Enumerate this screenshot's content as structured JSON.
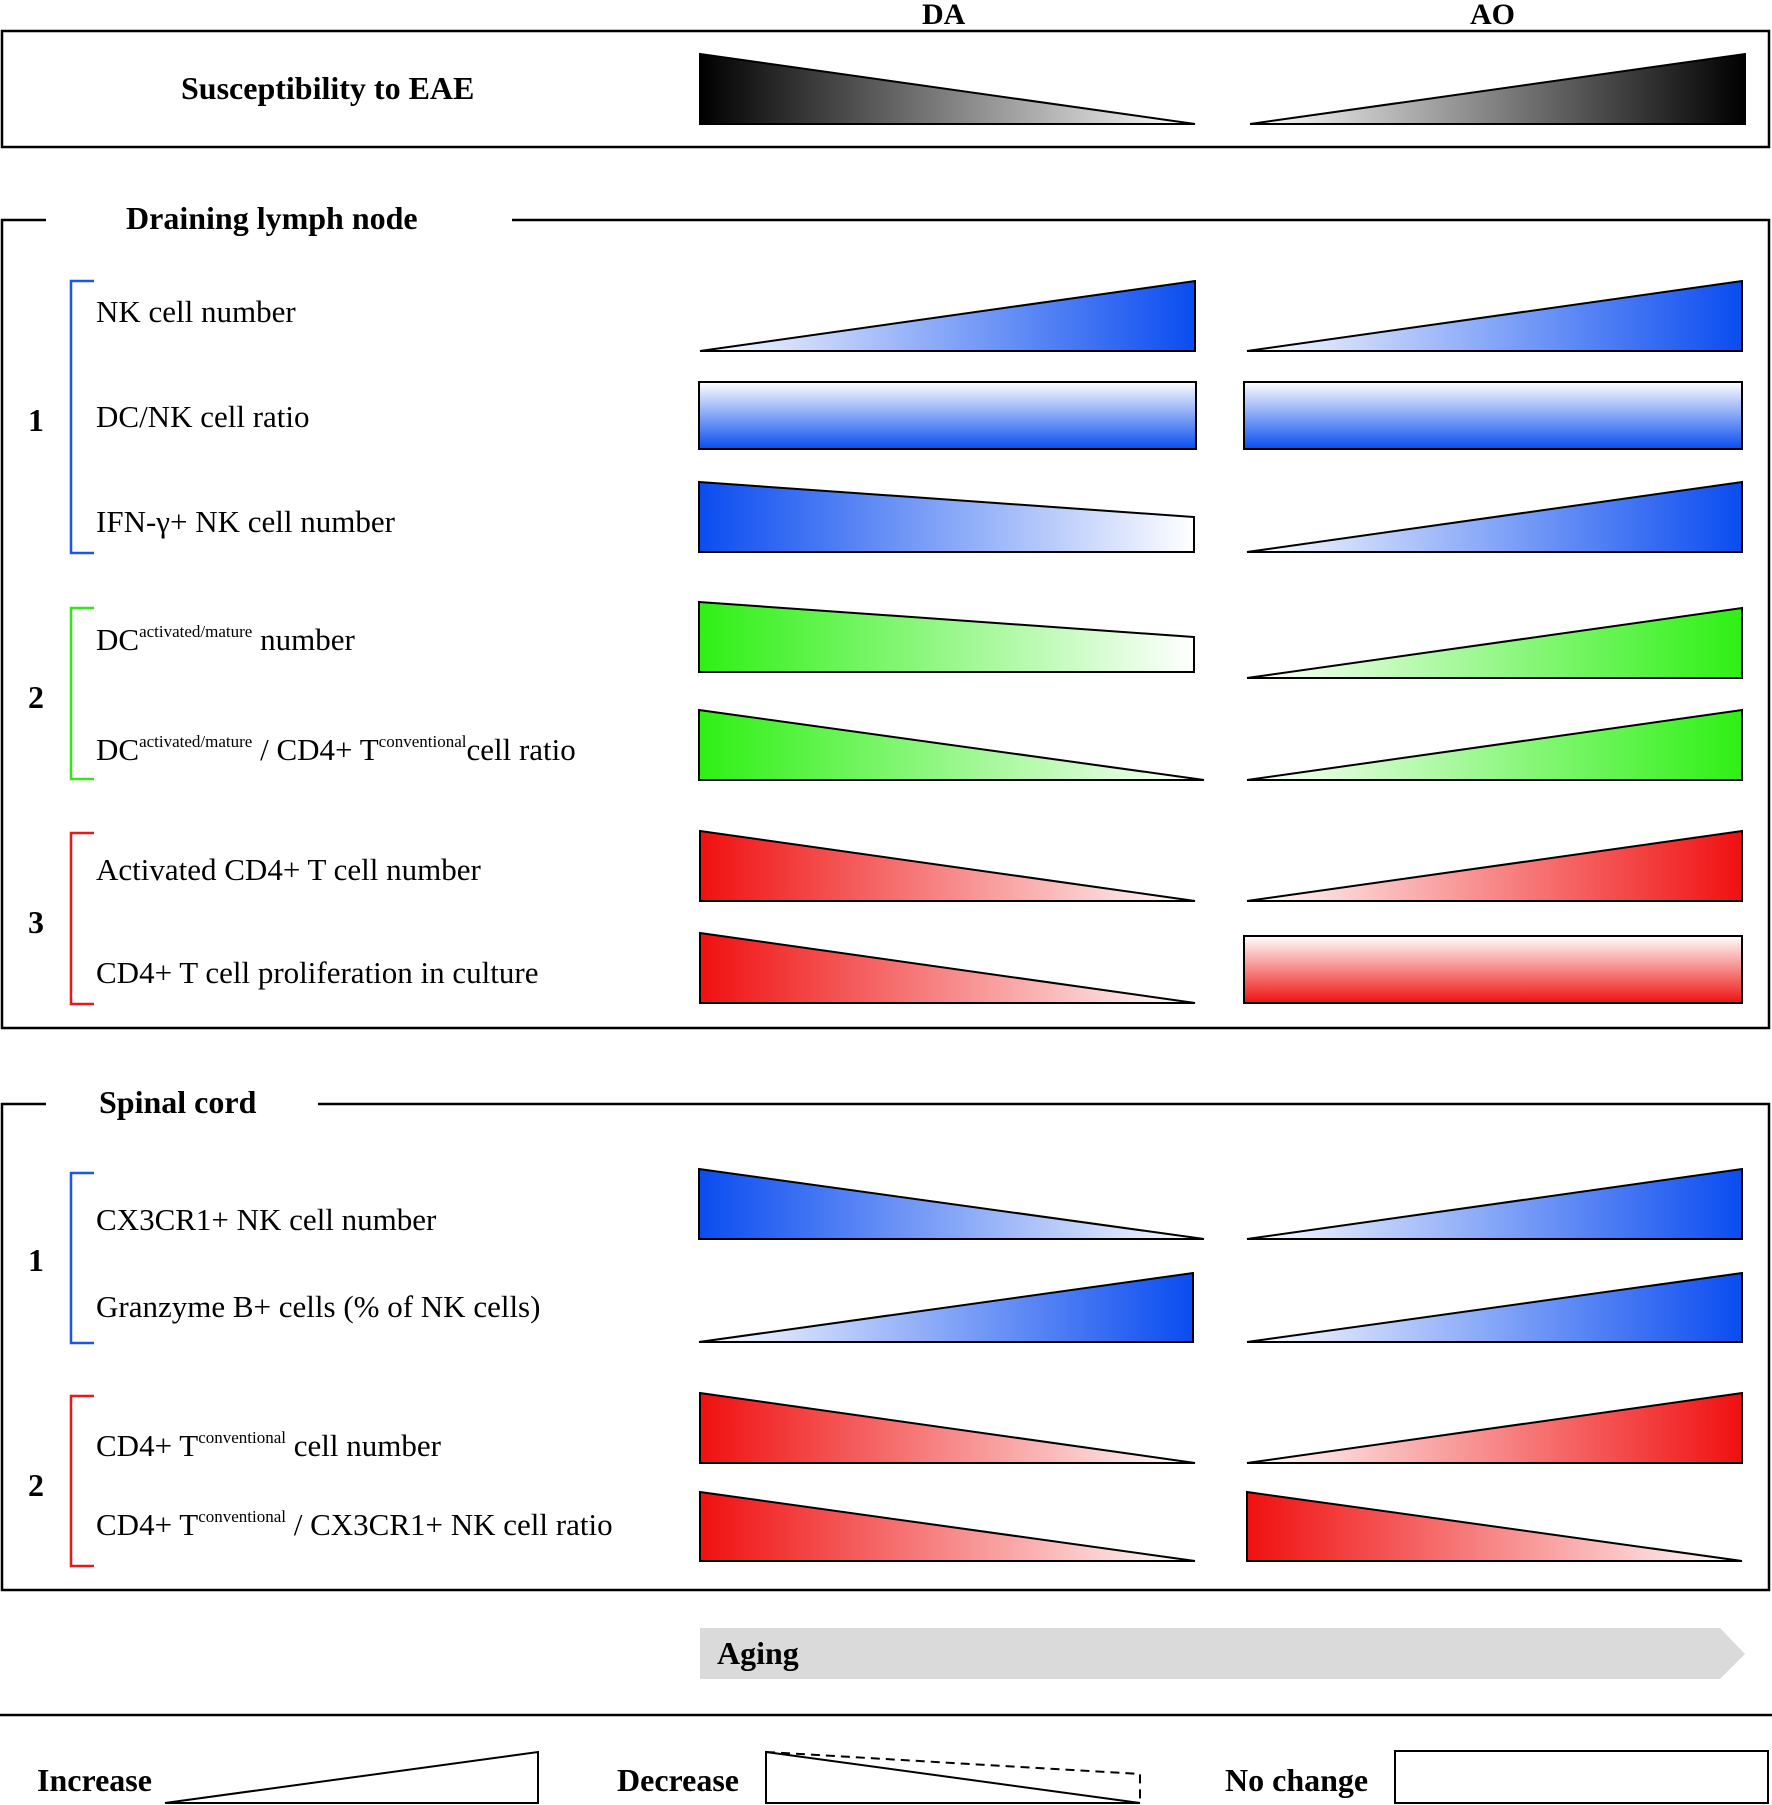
{
  "columns": [
    "DA",
    "AO"
  ],
  "susceptibility": {
    "label": "Susceptibility to EAE",
    "DA": "decrease",
    "AO": "increase"
  },
  "sections": [
    {
      "title": "Draining lymph node",
      "groups": [
        {
          "number": "1",
          "color": "#1a56e8",
          "rows": [
            {
              "label": "NK cell number",
              "DA": "increase",
              "AO": "increase"
            },
            {
              "label": "DC/NK cell ratio",
              "DA": "no change",
              "AO": "no change"
            },
            {
              "label": "IFN-γ+ NK cell number",
              "DA": "decrease",
              "AO": "increase"
            }
          ]
        },
        {
          "number": "2",
          "color": "#33e61a",
          "rows": [
            {
              "label_parts": [
                "DC",
                "activated/mature",
                " number"
              ],
              "DA": "decrease",
              "AO": "increase"
            },
            {
              "label_parts": [
                "DC",
                "activated/mature",
                " / CD4+ T",
                "conventional",
                "cell ratio"
              ],
              "DA": "decrease",
              "AO": "increase"
            }
          ]
        },
        {
          "number": "3",
          "color": "#e61a1a",
          "rows": [
            {
              "label": "Activated CD4+ T cell number",
              "DA": "decrease",
              "AO": "increase"
            },
            {
              "label": "CD4+ T cell proliferation in culture",
              "DA": "decrease",
              "AO": "no change"
            }
          ]
        }
      ]
    },
    {
      "title": "Spinal cord",
      "groups": [
        {
          "number": "1",
          "color": "#1a56e8",
          "rows": [
            {
              "label": "CX3CR1+ NK cell number",
              "DA": "decrease",
              "AO": "increase"
            },
            {
              "label": "Granzyme B+ cells (% of NK cells)",
              "DA": "increase",
              "AO": "increase"
            }
          ]
        },
        {
          "number": "2",
          "color": "#e61a1a",
          "rows": [
            {
              "label_parts": [
                "CD4+ T",
                "conventional",
                " cell number"
              ],
              "DA": "decrease",
              "AO": "increase"
            },
            {
              "label_parts": [
                "CD4+ T",
                "conventional",
                " / CX3CR1+ NK cell ratio"
              ],
              "DA": "decrease",
              "AO": "decrease"
            }
          ]
        }
      ]
    }
  ],
  "aging": {
    "label": "Aging",
    "color": "#dadada"
  },
  "legend": {
    "increase": "Increase",
    "decrease": "Decrease",
    "no_change": "No change"
  },
  "colors": {
    "blue": "#1a56e8",
    "green": "#33e61a",
    "red": "#e61a1a",
    "black": "#000000"
  }
}
